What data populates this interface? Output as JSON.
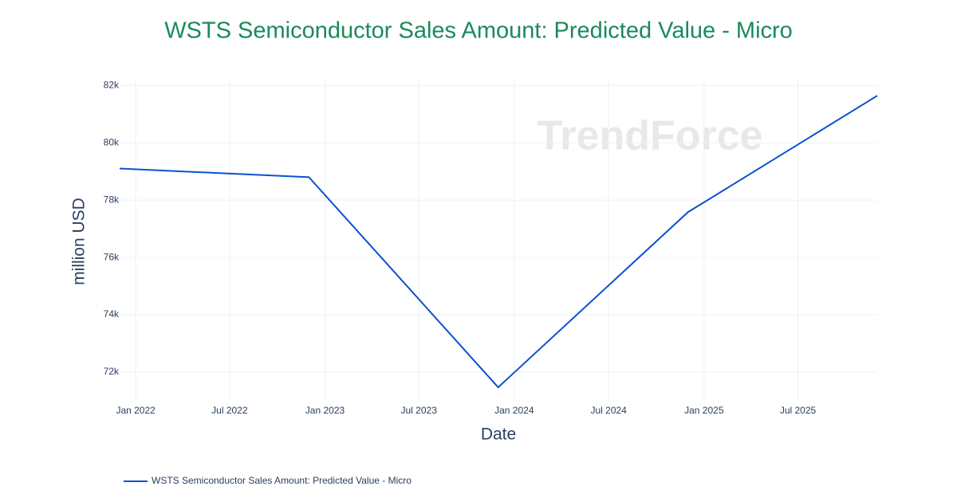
{
  "chart_data": {
    "type": "line",
    "title": "WSTS Semiconductor Sales Amount: Predicted Value - Micro",
    "x_label": "Date",
    "y_label": "million USD",
    "watermark": "TrendForce",
    "x": [
      "2021-12",
      "2022-12",
      "2023-12",
      "2024-12",
      "2025-12"
    ],
    "series": [
      {
        "name": "WSTS Semiconductor Sales Amount: Predicted Value - Micro",
        "color": "#0a52d0",
        "values": [
          79100,
          78800,
          71470,
          77580,
          81640
        ]
      }
    ],
    "xlim": [
      "2021-12",
      "2025-12"
    ],
    "xticks": [
      {
        "value": "2022-01",
        "label": "Jan 2022"
      },
      {
        "value": "2022-07",
        "label": "Jul 2022"
      },
      {
        "value": "2023-01",
        "label": "Jan 2023"
      },
      {
        "value": "2023-07",
        "label": "Jul 2023"
      },
      {
        "value": "2024-01",
        "label": "Jan 2024"
      },
      {
        "value": "2024-07",
        "label": "Jul 2024"
      },
      {
        "value": "2025-01",
        "label": "Jan 2025"
      },
      {
        "value": "2025-07",
        "label": "Jul 2025"
      }
    ],
    "ylim": [
      71000,
      82200
    ],
    "yticks": [
      {
        "value": 72000,
        "label": "72k"
      },
      {
        "value": 74000,
        "label": "74k"
      },
      {
        "value": 76000,
        "label": "76k"
      },
      {
        "value": 78000,
        "label": "78k"
      },
      {
        "value": 80000,
        "label": "80k"
      },
      {
        "value": 82000,
        "label": "82k"
      }
    ],
    "grid": true,
    "legend": "bottom-left",
    "title_color": "#1a8a5a"
  }
}
